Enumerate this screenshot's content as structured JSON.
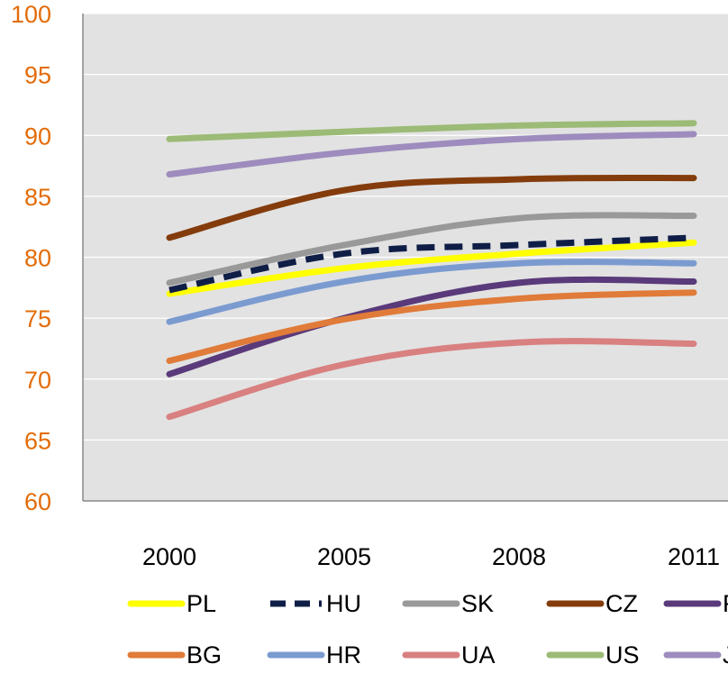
{
  "chart_data": {
    "type": "line",
    "title": "",
    "xlabel": "",
    "ylabel": "",
    "x": [
      "2000",
      "2005",
      "2008",
      "2011"
    ],
    "ylim": [
      60,
      100
    ],
    "yticks": [
      "60",
      "65",
      "70",
      "75",
      "80",
      "85",
      "90",
      "95",
      "100"
    ],
    "grid": true,
    "legend_position": "bottom",
    "series": [
      {
        "name": "PL",
        "values": [
          77.0,
          79.1,
          80.3,
          81.2
        ],
        "color": "#ffff00",
        "dash": false
      },
      {
        "name": "HU",
        "values": [
          77.3,
          80.3,
          81.0,
          81.6
        ],
        "color": "#0f1e46",
        "dash": true
      },
      {
        "name": "SK",
        "values": [
          77.9,
          81.0,
          83.2,
          83.4
        ],
        "color": "#999999",
        "dash": false
      },
      {
        "name": "CZ",
        "values": [
          81.6,
          85.5,
          86.4,
          86.5
        ],
        "color": "#843c0c",
        "dash": false
      },
      {
        "name": "RO",
        "values": [
          70.4,
          75.0,
          77.9,
          78.0
        ],
        "color": "#5a3a7a",
        "dash": false
      },
      {
        "name": "BG",
        "values": [
          71.5,
          74.9,
          76.6,
          77.1
        ],
        "color": "#e07b39",
        "dash": false
      },
      {
        "name": "HR",
        "values": [
          74.7,
          78.0,
          79.5,
          79.5
        ],
        "color": "#7b9bd0",
        "dash": false
      },
      {
        "name": "UA",
        "values": [
          66.9,
          71.2,
          73.0,
          72.9
        ],
        "color": "#d98080",
        "dash": false
      },
      {
        "name": "US",
        "values": [
          89.7,
          90.3,
          90.8,
          91.0
        ],
        "color": "#9bbb76",
        "dash": false
      },
      {
        "name": "JP",
        "values": [
          86.8,
          88.6,
          89.7,
          90.1
        ],
        "color": "#9d8cbd",
        "dash": false
      }
    ]
  }
}
